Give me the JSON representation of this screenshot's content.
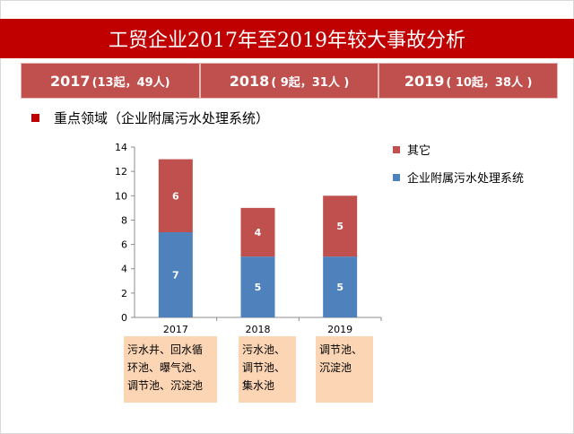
{
  "title": "工贸企业2017年至2019年较大事故分析",
  "years": [
    {
      "year": "2017",
      "detail": "(13起，49人)"
    },
    {
      "year": "2018",
      "detail": "( 9起，31人 )"
    },
    {
      "year": "2019",
      "detail": "( 10起，38人 )"
    }
  ],
  "focus_label": "重点领域（企业附属污水处理系统）",
  "notes": [
    [
      "污水井、回水循",
      "环池、曝气池、",
      "调节池、沉淀池"
    ],
    [
      "污水池、",
      "调节池、",
      "集水池"
    ],
    [
      "调节池、",
      "沉淀池"
    ]
  ],
  "colors": {
    "title_bar": "#c00000",
    "year_cells": "#c0504d",
    "series_blue": "#4f81bd",
    "series_red": "#c0504d",
    "note_fill": "#fcd5b5"
  },
  "chart_data": {
    "type": "bar",
    "stacked": true,
    "categories": [
      "2017",
      "2018",
      "2019"
    ],
    "series": [
      {
        "name": "企业附属污水处理系统",
        "values": [
          7,
          5,
          5
        ],
        "color": "#4f81bd"
      },
      {
        "name": "其它",
        "values": [
          6,
          4,
          5
        ],
        "color": "#c0504d"
      }
    ],
    "ylim": [
      0,
      14
    ],
    "yticks": [
      0,
      2,
      4,
      6,
      8,
      10,
      12,
      14
    ],
    "grid": false,
    "legend_position": "right"
  }
}
